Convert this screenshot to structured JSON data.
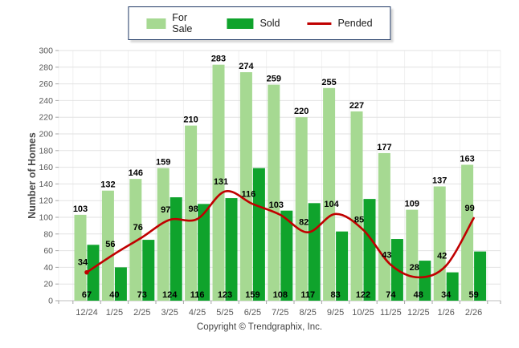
{
  "page": {
    "footer": "Copyright © Trendgraphix, Inc."
  },
  "legend": {
    "items": [
      {
        "label": "For Sale",
        "type": "swatch",
        "color": "#a6d992"
      },
      {
        "label": "Sold",
        "type": "swatch",
        "color": "#0fa32c"
      },
      {
        "label": "Pended",
        "type": "line",
        "color": "#c00000"
      }
    ]
  },
  "chart_data": {
    "type": "bar+line",
    "title": "",
    "xlabel": "",
    "ylabel": "Number of Homes",
    "ylim": [
      0,
      300
    ],
    "ytick_step": 20,
    "yticks": [
      0,
      20,
      40,
      60,
      80,
      100,
      120,
      140,
      160,
      180,
      200,
      220,
      240,
      260,
      280,
      300
    ],
    "grid": true,
    "legend_position": "top-center",
    "categories": [
      "12/24",
      "1/25",
      "2/25",
      "3/25",
      "4/25",
      "5/25",
      "6/25",
      "7/25",
      "8/25",
      "9/25",
      "10/25",
      "11/25",
      "12/25",
      "1/26",
      "2/26"
    ],
    "series": [
      {
        "name": "For Sale",
        "type": "bar",
        "color": "#a6d992",
        "values": [
          103,
          132,
          146,
          159,
          210,
          283,
          274,
          259,
          220,
          255,
          227,
          177,
          109,
          137,
          163
        ]
      },
      {
        "name": "Sold",
        "type": "bar",
        "color": "#0fa32c",
        "values": [
          67,
          40,
          73,
          124,
          116,
          123,
          159,
          108,
          117,
          83,
          122,
          74,
          48,
          34,
          59
        ]
      },
      {
        "name": "Pended",
        "type": "line",
        "color": "#c00000",
        "values": [
          34,
          56,
          76,
          97,
          98,
          131,
          116,
          103,
          82,
          104,
          85,
          43,
          28,
          42,
          99
        ]
      }
    ],
    "colors": {
      "hgrid": "#e2e2e2",
      "vgrid": "#f0f0f0",
      "baseline": "#bfbfbf",
      "tick": "#a6a6a6",
      "tick_text": "#595959",
      "data_label": "#000000"
    }
  }
}
